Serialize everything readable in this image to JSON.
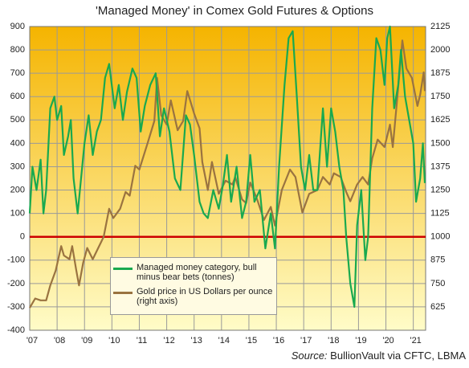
{
  "chart_data": {
    "type": "line",
    "title": "'Managed Money' in Comex Gold Futures & Options",
    "source_label": "Source:",
    "source": "BullionVault via CFTC, LBMA",
    "xlim": [
      2007,
      2021.45
    ],
    "xticks": [
      {
        "value": 2007,
        "label": "'07"
      },
      {
        "value": 2008,
        "label": "'08"
      },
      {
        "value": 2009,
        "label": "'09"
      },
      {
        "value": 2010,
        "label": "'10"
      },
      {
        "value": 2011,
        "label": "'11"
      },
      {
        "value": 2012,
        "label": "'12"
      },
      {
        "value": 2013,
        "label": "'13"
      },
      {
        "value": 2014,
        "label": "'14"
      },
      {
        "value": 2015,
        "label": "'15"
      },
      {
        "value": 2016,
        "label": "'16"
      },
      {
        "value": 2017,
        "label": "'17"
      },
      {
        "value": 2018,
        "label": "'18"
      },
      {
        "value": 2019,
        "label": "'19"
      },
      {
        "value": 2020,
        "label": "'20"
      },
      {
        "value": 2021,
        "label": "'21"
      }
    ],
    "ylim": [
      -400,
      900
    ],
    "yticks": [
      -400,
      -300,
      -200,
      -100,
      0,
      100,
      200,
      300,
      400,
      500,
      600,
      700,
      800,
      900
    ],
    "y2lim": [
      500,
      2125
    ],
    "y2ticks": [
      625,
      750,
      875,
      1000,
      1125,
      1250,
      1375,
      1500,
      1625,
      1750,
      1875,
      2000,
      2125
    ],
    "grid": true,
    "series": [
      {
        "name": "Managed money category, bull minus bear bets (tonnes)",
        "color": "#19a94f",
        "axis": "y",
        "x": [
          2007.0,
          2007.1,
          2007.25,
          2007.4,
          2007.5,
          2007.6,
          2007.75,
          2007.9,
          2008.0,
          2008.15,
          2008.25,
          2008.4,
          2008.5,
          2008.6,
          2008.75,
          2008.85,
          2009.0,
          2009.15,
          2009.3,
          2009.45,
          2009.6,
          2009.75,
          2009.9,
          2010.1,
          2010.25,
          2010.4,
          2010.55,
          2010.75,
          2010.9,
          2011.05,
          2011.2,
          2011.4,
          2011.6,
          2011.75,
          2011.9,
          2012.1,
          2012.3,
          2012.5,
          2012.7,
          2012.85,
          2013.0,
          2013.2,
          2013.35,
          2013.5,
          2013.7,
          2013.9,
          2014.05,
          2014.2,
          2014.35,
          2014.55,
          2014.75,
          2014.9,
          2015.05,
          2015.2,
          2015.4,
          2015.6,
          2015.8,
          2015.95,
          2016.1,
          2016.3,
          2016.45,
          2016.6,
          2016.75,
          2016.9,
          2017.05,
          2017.2,
          2017.35,
          2017.5,
          2017.7,
          2017.85,
          2018.0,
          2018.15,
          2018.3,
          2018.45,
          2018.55,
          2018.7,
          2018.85,
          2018.95,
          2019.1,
          2019.25,
          2019.35,
          2019.5,
          2019.65,
          2019.8,
          2019.95,
          2020.05,
          2020.15,
          2020.3,
          2020.45,
          2020.55,
          2020.7,
          2020.85,
          2021.0,
          2021.1,
          2021.25,
          2021.35,
          2021.42
        ],
        "values": [
          100,
          300,
          200,
          330,
          100,
          200,
          550,
          600,
          500,
          560,
          350,
          430,
          500,
          250,
          100,
          220,
          400,
          520,
          350,
          450,
          500,
          680,
          740,
          550,
          650,
          500,
          620,
          720,
          680,
          450,
          560,
          650,
          700,
          430,
          550,
          450,
          250,
          200,
          520,
          480,
          350,
          150,
          100,
          80,
          200,
          120,
          220,
          350,
          150,
          300,
          80,
          150,
          350,
          150,
          200,
          -50,
          100,
          -50,
          300,
          650,
          850,
          880,
          600,
          300,
          200,
          350,
          200,
          200,
          550,
          300,
          550,
          450,
          300,
          200,
          0,
          -200,
          -300,
          50,
          200,
          -100,
          0,
          550,
          850,
          800,
          650,
          850,
          900,
          550,
          650,
          800,
          600,
          500,
          400,
          150,
          250,
          400,
          230
        ]
      },
      {
        "name": "Gold price in US Dollars per ounce (right axis)",
        "color": "#9a7340",
        "axis": "y2",
        "x": [
          2007.0,
          2007.2,
          2007.4,
          2007.6,
          2007.75,
          2007.95,
          2008.15,
          2008.25,
          2008.45,
          2008.55,
          2008.7,
          2008.8,
          2008.95,
          2009.1,
          2009.3,
          2009.5,
          2009.7,
          2009.9,
          2010.05,
          2010.3,
          2010.5,
          2010.65,
          2010.85,
          2011.0,
          2011.3,
          2011.55,
          2011.65,
          2011.8,
          2012.0,
          2012.15,
          2012.4,
          2012.6,
          2012.75,
          2013.0,
          2013.2,
          2013.3,
          2013.5,
          2013.65,
          2013.9,
          2014.15,
          2014.4,
          2014.5,
          2014.75,
          2014.9,
          2015.05,
          2015.3,
          2015.55,
          2015.8,
          2015.95,
          2016.2,
          2016.5,
          2016.7,
          2016.95,
          2017.2,
          2017.5,
          2017.7,
          2017.95,
          2018.1,
          2018.35,
          2018.55,
          2018.7,
          2018.95,
          2019.15,
          2019.35,
          2019.5,
          2019.7,
          2019.95,
          2020.15,
          2020.25,
          2020.4,
          2020.6,
          2020.75,
          2020.95,
          2021.15,
          2021.25,
          2021.38,
          2021.42
        ],
        "values": [
          620,
          670,
          660,
          660,
          740,
          820,
          950,
          900,
          880,
          950,
          820,
          740,
          860,
          940,
          880,
          940,
          1000,
          1150,
          1100,
          1150,
          1240,
          1220,
          1380,
          1360,
          1500,
          1620,
          1850,
          1650,
          1600,
          1730,
          1570,
          1620,
          1780,
          1660,
          1580,
          1400,
          1250,
          1400,
          1230,
          1300,
          1280,
          1320,
          1200,
          1180,
          1290,
          1200,
          1090,
          1160,
          1060,
          1250,
          1360,
          1320,
          1130,
          1230,
          1250,
          1320,
          1280,
          1340,
          1320,
          1240,
          1190,
          1280,
          1320,
          1280,
          1420,
          1520,
          1480,
          1600,
          1480,
          1720,
          2050,
          1900,
          1850,
          1700,
          1760,
          1880,
          1780
        ]
      }
    ]
  }
}
